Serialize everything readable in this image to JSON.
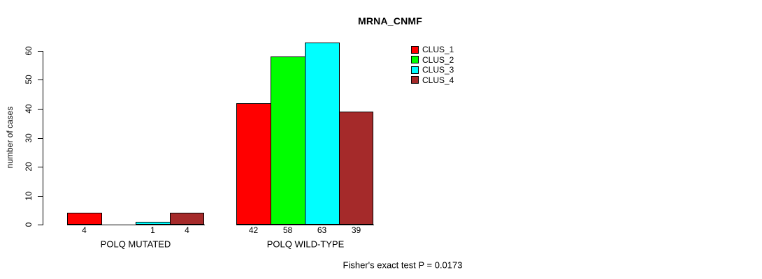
{
  "title": "MRNA_CNMF",
  "colors": {
    "background": "#FFFFFF",
    "axis": "#000000",
    "clus1": "#FF0000",
    "clus2": "#00FF00",
    "clus3": "#00FFFF",
    "clus4": "#A52A2A"
  },
  "chart_data": {
    "type": "bar",
    "title": "MRNA_CNMF",
    "xlabel": "",
    "ylabel": "number of cases",
    "ylim": [
      0,
      60
    ],
    "yticks": [
      0,
      10,
      20,
      30,
      40,
      50,
      60
    ],
    "grid": false,
    "legend_position": "top-right",
    "series": [
      {
        "name": "CLUS_1",
        "color": "#FF0000"
      },
      {
        "name": "CLUS_2",
        "color": "#00FF00"
      },
      {
        "name": "CLUS_3",
        "color": "#00FFFF"
      },
      {
        "name": "CLUS_4",
        "color": "#A52A2A"
      }
    ],
    "groups": [
      {
        "label": "POLQ MUTATED",
        "values": [
          4,
          0,
          1,
          4
        ],
        "bar_labels": [
          "4",
          "",
          "1",
          "4"
        ]
      },
      {
        "label": "POLQ WILD-TYPE",
        "values": [
          42,
          58,
          63,
          39
        ],
        "bar_labels": [
          "42",
          "58",
          "63",
          "39"
        ]
      }
    ],
    "annotation": "Fisher's exact test P = 0.0173"
  }
}
